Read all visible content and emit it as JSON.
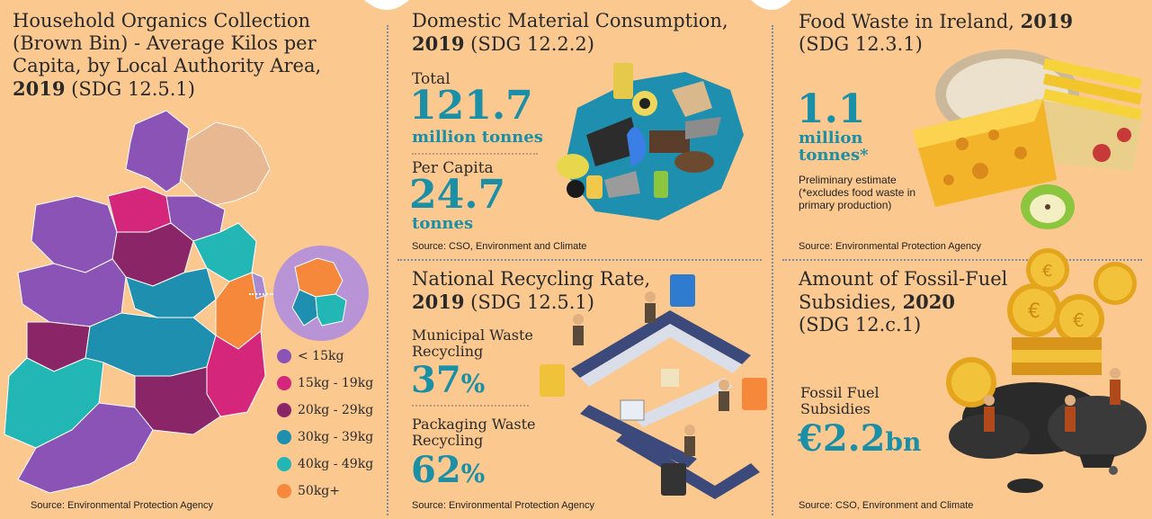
{
  "panels": {
    "organics": {
      "title_line1": "Household Organics Collection",
      "title_line2": "(Brown Bin) - Average Kilos per",
      "title_line3": "Capita, by Local Authority Area,",
      "title_year": "2019",
      "title_sdg": " (SDG 12.5.1)",
      "legend": [
        {
          "label": "< 15kg",
          "color": "#8a53b5"
        },
        {
          "label": "15kg - 19kg",
          "color": "#d4267a"
        },
        {
          "label": "20kg - 29kg",
          "color": "#8a2567"
        },
        {
          "label": "30kg - 39kg",
          "color": "#1e8fae"
        },
        {
          "label": "40kg - 49kg",
          "color": "#22b6b4"
        },
        {
          "label": "50kg+",
          "color": "#f6883c"
        }
      ],
      "source": "Source: Environmental Protection Agency"
    },
    "dmc": {
      "title_line1": "Domestic Material Consumption,",
      "title_year": "2019",
      "title_sdg": " (SDG 12.2.2)",
      "total_label": "Total",
      "total_value": "121.7",
      "total_unit": "million tonnes",
      "per_capita_label": "Per Capita",
      "per_capita_value": "24.7",
      "per_capita_unit": "tonnes",
      "source": "Source: CSO, Environment and Climate"
    },
    "food": {
      "title_line1": "Food Waste in Ireland,",
      "title_year": "2019",
      "title_sdg": "(SDG 12.3.1)",
      "value": "1.1",
      "unit_line1": "million",
      "unit_line2": "tonnes*",
      "note_line1": "Preliminary estimate",
      "note_line2": "(*excludes food waste in",
      "note_line3": "primary production)",
      "source": "Source: Environmental Protection Agency"
    },
    "recycling": {
      "title_line1": "National Recycling Rate,",
      "title_year": "2019",
      "title_sdg": " (SDG 12.5.1)",
      "municipal_label_line1": "Municipal Waste",
      "municipal_label_line2": "Recycling",
      "municipal_value": "37",
      "packaging_label_line1": "Packaging Waste",
      "packaging_label_line2": "Recycling",
      "packaging_value": "62",
      "percent": "%",
      "source": "Source: Environmental Protection Agency"
    },
    "fossil": {
      "title_line1": "Amount of Fossil-Fuel",
      "title_line2_text": "Subsidies, ",
      "title_year": "2020",
      "title_sdg": "(SDG 12.c.1)",
      "label_line1": "Fossil Fuel",
      "label_line2": "Subsidies",
      "value": "€2.2",
      "value_unit": "bn",
      "source": "Source: CSO, Environment and Climate"
    }
  }
}
